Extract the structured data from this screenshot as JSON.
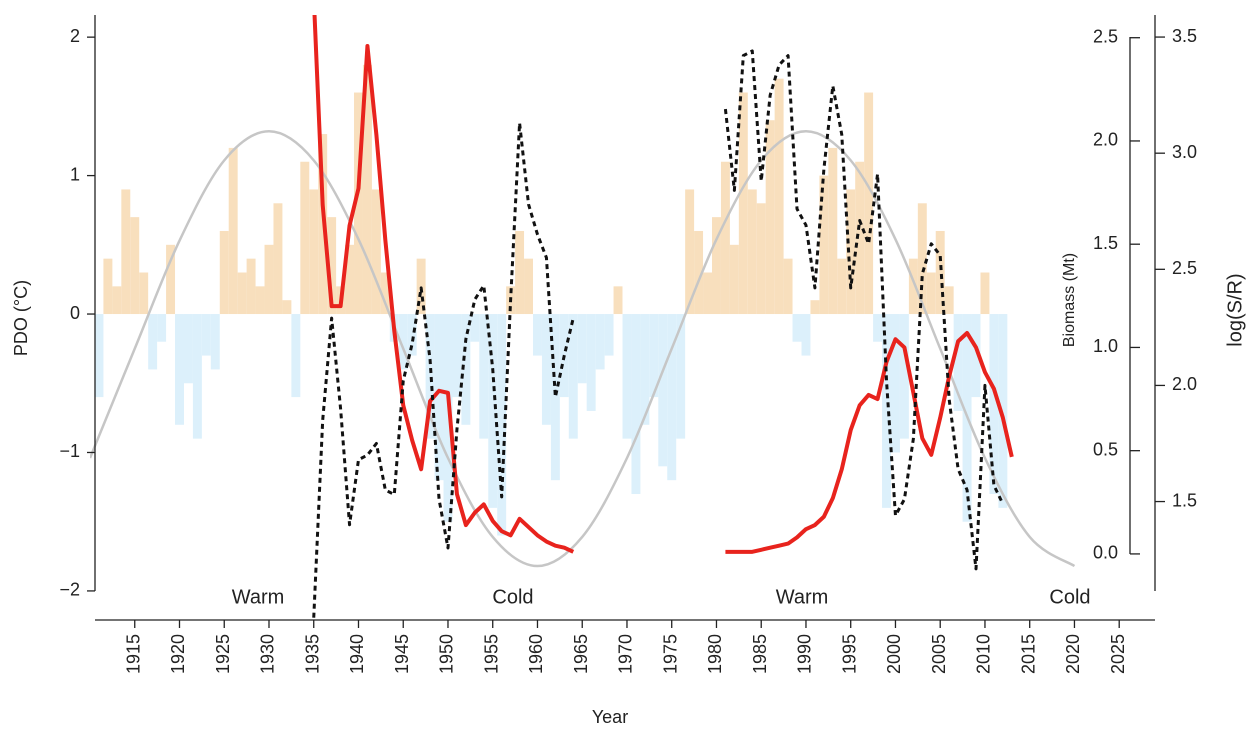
{
  "chart_data": {
    "type": "multi",
    "x_label": "Year",
    "y_label": "PDO (°C)",
    "y2_label": "Biomass (Mt)",
    "y3_label": "log(S/R)",
    "xlim": [
      1910,
      2029
    ],
    "xticks": [
      1915,
      1920,
      1925,
      1930,
      1935,
      1940,
      1945,
      1950,
      1955,
      1960,
      1965,
      1970,
      1975,
      1980,
      1985,
      1990,
      1995,
      2000,
      2005,
      2010,
      2015,
      2020,
      2025
    ],
    "ylim": [
      -2.21,
      2.16
    ],
    "yticks": [
      {
        "value": -2,
        "label": "−2"
      },
      {
        "value": -1,
        "label": "−1"
      },
      0,
      1,
      2
    ],
    "y2lim": [
      -0.32,
      2.61
    ],
    "y2ticks": [
      {
        "value": 0,
        "label": "0.0"
      },
      0.5,
      {
        "value": 1,
        "label": "1.0"
      },
      1.5,
      {
        "value": 2,
        "label": "2.0"
      },
      2.5
    ],
    "y3lim": [
      0.99,
      3.595
    ],
    "y3ticks": [
      1.5,
      {
        "value": 2,
        "label": "2.0"
      },
      2.5,
      {
        "value": 3,
        "label": "3.0"
      },
      3.5
    ],
    "annotations": [
      {
        "text": "Warm",
        "color": "#e8231d"
      },
      {
        "text": "Cold",
        "color": "#3b3bb8"
      },
      {
        "text": "Warm",
        "color": "#e8231d"
      },
      {
        "text": "Cold",
        "color": "#3b3bb8"
      }
    ],
    "series": [
      {
        "type": "bar",
        "axis": "y",
        "color": "#f8dfbd",
        "negative_color": "#dcf0fb",
        "x": [
          1911,
          1912,
          1913,
          1914,
          1915,
          1916,
          1917,
          1918,
          1919,
          1920,
          1921,
          1922,
          1923,
          1924,
          1925,
          1926,
          1927,
          1928,
          1929,
          1930,
          1931,
          1932,
          1933,
          1934,
          1935,
          1936,
          1937,
          1938,
          1939,
          1940,
          1941,
          1942,
          1943,
          1944,
          1945,
          1946,
          1947,
          1948,
          1949,
          1950,
          1951,
          1952,
          1953,
          1954,
          1955,
          1956,
          1957,
          1958,
          1959,
          1960,
          1961,
          1962,
          1963,
          1964,
          1965,
          1966,
          1967,
          1968,
          1969,
          1970,
          1971,
          1972,
          1973,
          1974,
          1975,
          1976,
          1977,
          1978,
          1979,
          1980,
          1981,
          1982,
          1983,
          1984,
          1985,
          1986,
          1987,
          1988,
          1989,
          1990,
          1991,
          1992,
          1993,
          1994,
          1995,
          1996,
          1997,
          1998,
          1999,
          2000,
          2001,
          2002,
          2003,
          2004,
          2005,
          2006,
          2007,
          2008,
          2009,
          2010,
          2011,
          2012
        ],
        "values": [
          -0.6,
          0.4,
          0.2,
          0.9,
          0.7,
          0.3,
          -0.4,
          -0.2,
          0.5,
          -0.8,
          -0.5,
          -0.9,
          -0.3,
          -0.4,
          0.6,
          1.2,
          0.3,
          0.4,
          0.2,
          0.5,
          0.8,
          0.1,
          -0.6,
          1.1,
          0.9,
          1.3,
          0.7,
          0.2,
          0.5,
          1.6,
          1.8,
          0.9,
          0.3,
          -0.2,
          -0.4,
          -0.3,
          0.4,
          -0.9,
          -1.2,
          -1.5,
          -0.6,
          -0.8,
          -0.2,
          -0.9,
          -1.4,
          -1.6,
          0.2,
          0.6,
          0.4,
          -0.3,
          -0.8,
          -1.2,
          -0.6,
          -0.9,
          -0.5,
          -0.7,
          -0.4,
          -0.3,
          0.2,
          -0.9,
          -1.3,
          -0.8,
          -0.6,
          -1.1,
          -1.2,
          -0.9,
          0.9,
          0.6,
          0.3,
          0.7,
          1.1,
          0.5,
          1.6,
          0.9,
          0.8,
          1.4,
          1.7,
          0.4,
          -0.2,
          -0.3,
          0.1,
          1.0,
          1.2,
          0.4,
          0.9,
          1.1,
          1.6,
          -0.2,
          -1.4,
          -1.0,
          -0.9,
          0.4,
          0.8,
          0.3,
          0.6,
          0.2,
          -0.7,
          -1.5,
          -0.6,
          0.3,
          -1.3,
          -1.4
        ]
      },
      {
        "type": "line",
        "axis": "y",
        "color": "#c6c6c6",
        "width": 2.5,
        "smooth": true,
        "x": [
          1910,
          1915,
          1920,
          1925,
          1930,
          1935,
          1940,
          1945,
          1950,
          1955,
          1960,
          1965,
          1970,
          1975,
          1980,
          1985,
          1990,
          1995,
          2000,
          2005,
          2010,
          2015,
          2020
        ],
        "values": [
          -1.04,
          -0.25,
          0.53,
          1.11,
          1.32,
          1.11,
          0.54,
          -0.25,
          -1.04,
          -1.61,
          -1.82,
          -1.61,
          -1.04,
          -0.25,
          0.54,
          1.11,
          1.32,
          1.11,
          0.54,
          -0.25,
          -1.04,
          -1.61,
          -1.82
        ]
      },
      {
        "type": "line",
        "axis": "y2",
        "color": "#e8231d",
        "width": 4,
        "x": [
          1935,
          1936,
          1937,
          1938,
          1939,
          1940,
          1941,
          1942,
          1943,
          1944,
          1945,
          1946,
          1947,
          1948,
          1949,
          1950,
          1951,
          1952,
          1953,
          1954,
          1955,
          1956,
          1957,
          1958,
          1959,
          1960,
          1961,
          1962,
          1963,
          1964,
          1965,
          1966,
          1967,
          1968,
          1969,
          1970,
          1971,
          1972,
          1973,
          1974,
          1975,
          1976,
          1977,
          1978,
          1979,
          1980,
          1981,
          1982,
          1983,
          1984,
          1985,
          1986,
          1987,
          1988,
          1989,
          1990,
          1991,
          1992,
          1993,
          1994,
          1995,
          1996,
          1997,
          1998,
          1999,
          2000,
          2001,
          2002,
          2003,
          2004,
          2005,
          2006,
          2007,
          2008,
          2009,
          2010,
          2011,
          2012,
          2013
        ],
        "values": [
          2.7,
          1.69,
          1.2,
          1.2,
          1.59,
          1.77,
          2.46,
          2.03,
          1.52,
          1.08,
          0.72,
          0.55,
          0.41,
          0.74,
          0.79,
          0.78,
          0.29,
          0.14,
          0.2,
          0.24,
          0.16,
          0.11,
          0.09,
          0.17,
          0.13,
          0.09,
          0.06,
          0.04,
          0.03,
          0.01,
          null,
          null,
          null,
          null,
          null,
          null,
          null,
          null,
          null,
          null,
          null,
          null,
          null,
          null,
          null,
          null,
          0.01,
          0.01,
          0.01,
          0.01,
          0.02,
          0.03,
          0.04,
          0.05,
          0.08,
          0.12,
          0.14,
          0.18,
          0.27,
          0.41,
          0.6,
          0.72,
          0.77,
          0.75,
          0.93,
          1.04,
          1.0,
          0.78,
          0.56,
          0.48,
          0.66,
          0.86,
          1.03,
          1.07,
          1.0,
          0.88,
          0.8,
          0.66,
          0.47
        ]
      },
      {
        "type": "line",
        "axis": "y3",
        "color": "#111111",
        "width": 3,
        "dashed": true,
        "x": [
          1935,
          1936,
          1937,
          1938,
          1939,
          1940,
          1941,
          1942,
          1943,
          1944,
          1945,
          1946,
          1947,
          1948,
          1949,
          1950,
          1951,
          1952,
          1953,
          1954,
          1955,
          1956,
          1957,
          1958,
          1959,
          1960,
          1961,
          1962,
          1963,
          1964,
          1965,
          1966,
          1967,
          1968,
          1969,
          1970,
          1971,
          1972,
          1973,
          1974,
          1975,
          1976,
          1977,
          1978,
          1979,
          1980,
          1981,
          1982,
          1983,
          1984,
          1985,
          1986,
          1987,
          1988,
          1989,
          1990,
          1991,
          1992,
          1993,
          1994,
          1995,
          1996,
          1997,
          1998,
          1999,
          2000,
          2001,
          2002,
          2003,
          2004,
          2005,
          2006,
          2007,
          2008,
          2009,
          2010,
          2011,
          2012
        ],
        "values": [
          1.0,
          1.85,
          2.29,
          1.9,
          1.4,
          1.68,
          1.7,
          1.75,
          1.55,
          1.53,
          2.02,
          2.18,
          2.42,
          2.11,
          1.51,
          1.3,
          1.81,
          2.2,
          2.37,
          2.43,
          2.07,
          1.52,
          2.37,
          3.13,
          2.78,
          2.65,
          2.55,
          1.95,
          2.13,
          2.29,
          null,
          null,
          null,
          null,
          null,
          null,
          null,
          null,
          null,
          null,
          null,
          null,
          null,
          null,
          null,
          null,
          3.19,
          2.84,
          3.42,
          3.44,
          2.88,
          3.25,
          3.38,
          3.42,
          2.76,
          2.69,
          2.42,
          2.93,
          3.29,
          3.08,
          2.42,
          2.71,
          2.61,
          2.91,
          2.02,
          1.44,
          1.51,
          1.77,
          2.48,
          2.61,
          2.56,
          1.94,
          1.64,
          1.55,
          1.21,
          2.0,
          1.57,
          1.49
        ]
      }
    ]
  }
}
